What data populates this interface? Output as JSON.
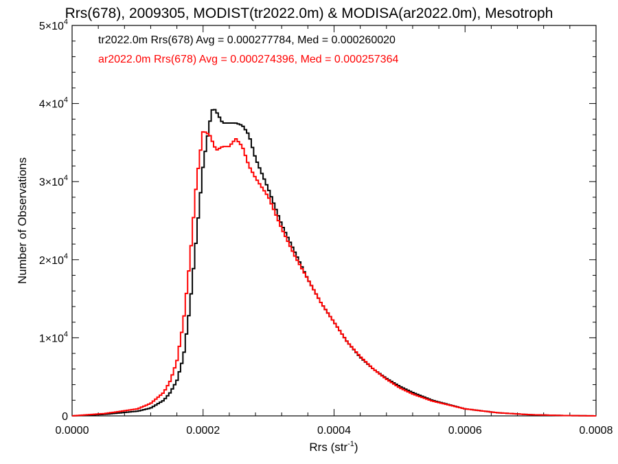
{
  "chart_data": {
    "type": "line",
    "title": "Rrs(678), 2009305, MODIST(tr2022.0m) & MODISA(ar2022.0m), Mesotroph",
    "xlabel": "Rrs (str",
    "xlabel_sup": "-1",
    "xlabel_end": ")",
    "ylabel": "Number of Observations",
    "xlim": [
      0.0,
      0.0008
    ],
    "ylim": [
      0,
      50000
    ],
    "x_ticks": [
      {
        "value": 0.0,
        "label": "0.0000"
      },
      {
        "value": 0.0002,
        "label": "0.0002"
      },
      {
        "value": 0.0004,
        "label": "0.0004"
      },
      {
        "value": 0.0006,
        "label": "0.0006"
      },
      {
        "value": 0.0008,
        "label": "0.0008"
      }
    ],
    "y_ticks": [
      {
        "value": 0,
        "label": "0",
        "exp": ""
      },
      {
        "value": 10000,
        "label": "1×10",
        "exp": "4"
      },
      {
        "value": 20000,
        "label": "2×10",
        "exp": "4"
      },
      {
        "value": 30000,
        "label": "3×10",
        "exp": "4"
      },
      {
        "value": 40000,
        "label": "4×10",
        "exp": "4"
      },
      {
        "value": 50000,
        "label": "5×10",
        "exp": "4"
      }
    ],
    "grid": false,
    "legend_position": "top-left",
    "series": [
      {
        "name": "tr2022.0m",
        "color": "#000000",
        "legend_text": "tr2022.0m Rrs(678) Avg = 0.000277784, Med = 0.000260020",
        "x": [
          0.0,
          5e-05,
          0.0001,
          0.00012,
          0.00014,
          0.00015,
          0.00016,
          0.00017,
          0.00018,
          0.00019,
          0.0002,
          0.00021,
          0.000215,
          0.00022,
          0.00023,
          0.00024,
          0.00025,
          0.00026,
          0.00027,
          0.00028,
          0.0003,
          0.00032,
          0.00034,
          0.00036,
          0.00038,
          0.0004,
          0.00042,
          0.00044,
          0.00046,
          0.00048,
          0.0005,
          0.00052,
          0.00055,
          0.0006,
          0.00065,
          0.0007,
          0.00075,
          0.0008
        ],
        "y": [
          0,
          200,
          600,
          1000,
          2000,
          3000,
          4500,
          7500,
          14000,
          23000,
          32000,
          37500,
          39500,
          39000,
          37500,
          37500,
          37500,
          37200,
          36000,
          33000,
          29000,
          24500,
          21000,
          17500,
          14500,
          12000,
          9500,
          7500,
          6000,
          4800,
          3800,
          3000,
          2000,
          900,
          400,
          150,
          50,
          0
        ]
      },
      {
        "name": "ar2022.0m",
        "color": "#ff0000",
        "legend_text": "ar2022.0m Rrs(678) Avg = 0.000274396, Med = 0.000257364",
        "x": [
          0.0,
          5e-05,
          0.0001,
          0.00012,
          0.00014,
          0.00015,
          0.00016,
          0.00017,
          0.00018,
          0.00019,
          0.0002,
          0.00021,
          0.00022,
          0.00023,
          0.00024,
          0.00025,
          0.00026,
          0.00027,
          0.00028,
          0.0003,
          0.00032,
          0.00034,
          0.00036,
          0.00038,
          0.0004,
          0.00042,
          0.00044,
          0.00046,
          0.00048,
          0.0005,
          0.00052,
          0.00055,
          0.0006,
          0.00065,
          0.0007,
          0.00075,
          0.0008
        ],
        "y": [
          0,
          300,
          900,
          1600,
          3000,
          4500,
          7000,
          12000,
          20000,
          30000,
          36500,
          36000,
          34000,
          34500,
          34500,
          35500,
          34500,
          32000,
          30500,
          28000,
          24000,
          20500,
          17500,
          14500,
          12000,
          9500,
          7600,
          6000,
          4700,
          3600,
          2800,
          1900,
          900,
          400,
          150,
          50,
          0
        ]
      }
    ]
  }
}
